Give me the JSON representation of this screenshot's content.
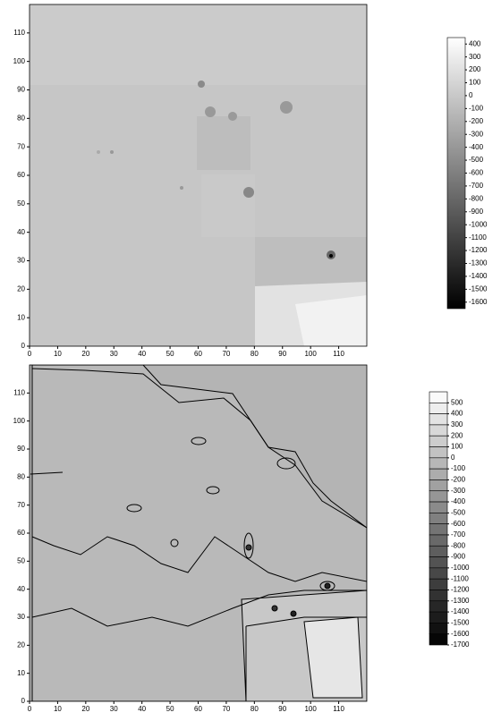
{
  "chart_data": [
    {
      "type": "heatmap",
      "xlim": [
        0,
        120
      ],
      "ylim": [
        0,
        120
      ],
      "xticks": [
        0,
        10,
        20,
        30,
        40,
        50,
        60,
        70,
        80,
        90,
        100,
        110
      ],
      "yticks": [
        0,
        10,
        20,
        30,
        40,
        50,
        60,
        70,
        80,
        90,
        100,
        110
      ],
      "colorbar": {
        "clim": [
          -1650,
          450
        ],
        "ticks": [
          400,
          300,
          200,
          100,
          0,
          -100,
          -200,
          -300,
          -400,
          -500,
          -600,
          -700,
          -800,
          -900,
          -1000,
          -1100,
          -1200,
          -1300,
          -1400,
          -1500,
          -1600
        ]
      }
    },
    {
      "type": "contour",
      "xlim": [
        0,
        120
      ],
      "ylim": [
        0,
        120
      ],
      "xticks": [
        0,
        10,
        20,
        30,
        40,
        50,
        60,
        70,
        80,
        90,
        100,
        110
      ],
      "yticks": [
        0,
        10,
        20,
        30,
        40,
        50,
        60,
        70,
        80,
        90,
        100,
        110
      ],
      "colorbar": {
        "clim": [
          -1700,
          600
        ],
        "ticks": [
          500,
          400,
          300,
          200,
          100,
          0,
          -100,
          -200,
          -300,
          -400,
          -500,
          -600,
          -700,
          -800,
          -900,
          -1000,
          -1100,
          -1200,
          -1300,
          -1400,
          -1500,
          -1600,
          -1700
        ]
      }
    }
  ]
}
